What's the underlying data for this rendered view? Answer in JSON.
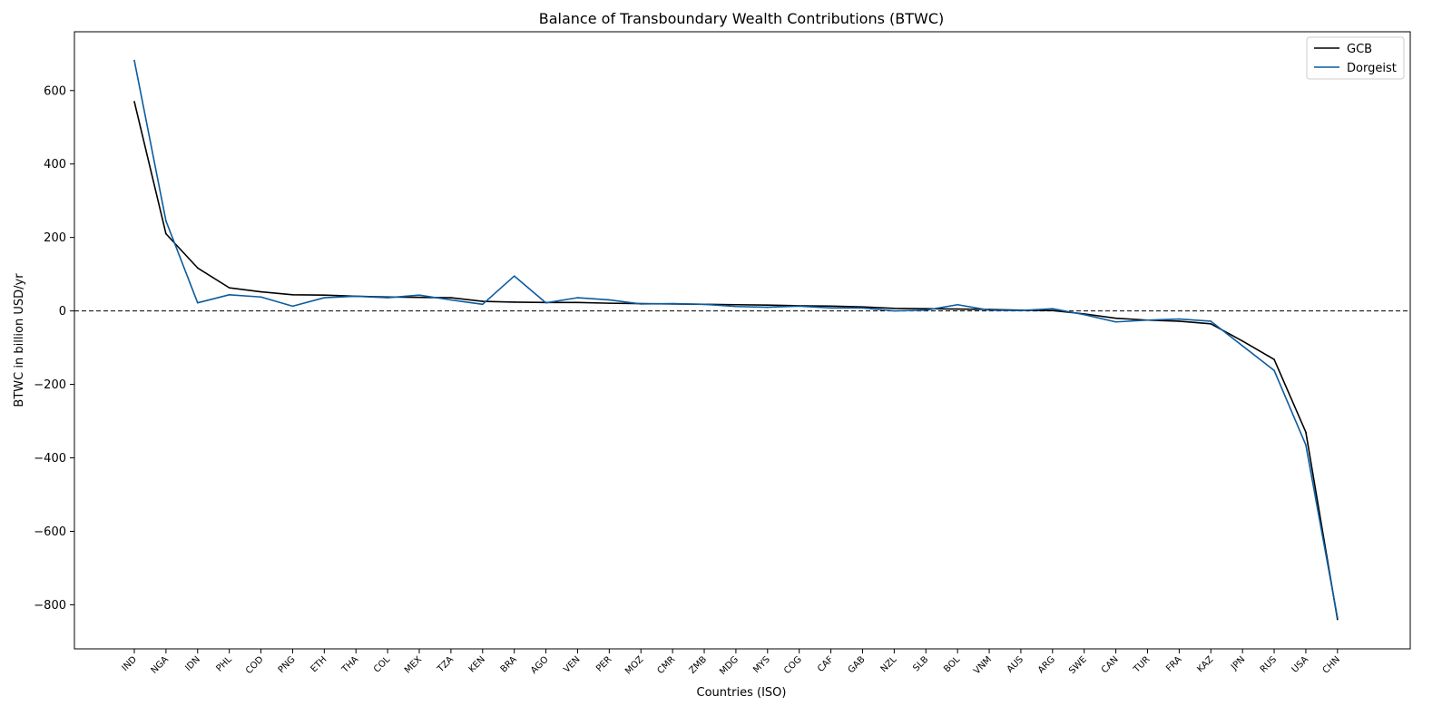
{
  "chart_data": {
    "type": "line",
    "title": "Balance of Transboundary Wealth Contributions (BTWC)",
    "xlabel": "Countries (ISO)",
    "ylabel": "BTWC in billion USD/yr",
    "ylim": [
      -920,
      760
    ],
    "yticks": [
      600,
      400,
      200,
      0,
      -200,
      -400,
      -600,
      -800
    ],
    "ytick_labels": [
      "600",
      "400",
      "200",
      "0",
      "−200",
      "−400",
      "−600",
      "−800"
    ],
    "categories": [
      "IND",
      "NGA",
      "IDN",
      "PHL",
      "COD",
      "PNG",
      "ETH",
      "THA",
      "COL",
      "MEX",
      "TZA",
      "KEN",
      "BRA",
      "AGO",
      "VEN",
      "PER",
      "MOZ",
      "CMR",
      "ZMB",
      "MDG",
      "MYS",
      "COG",
      "CAF",
      "GAB",
      "NZL",
      "SLB",
      "BOL",
      "VNM",
      "AUS",
      "ARG",
      "SWE",
      "CAN",
      "TUR",
      "FRA",
      "KAZ",
      "JPN",
      "RUS",
      "USA",
      "CHN"
    ],
    "series": [
      {
        "name": "GCB",
        "color": "#000000",
        "values": [
          570,
          210,
          117,
          63,
          52,
          44,
          43,
          40,
          38,
          37,
          36,
          26,
          24,
          23,
          23,
          21,
          20,
          19,
          18,
          17,
          16,
          14,
          13,
          11,
          7,
          6,
          5,
          4,
          2,
          1,
          -8,
          -20,
          -25,
          -28,
          -35,
          -82,
          -132,
          -330,
          -840
        ]
      },
      {
        "name": "Dorgeist",
        "color": "#0a5ca0",
        "values": [
          682,
          245,
          22,
          44,
          38,
          13,
          36,
          40,
          36,
          43,
          30,
          18,
          95,
          22,
          36,
          30,
          19,
          20,
          18,
          12,
          10,
          13,
          8,
          8,
          0,
          2,
          17,
          2,
          1,
          6,
          -10,
          -30,
          -25,
          -22,
          -28,
          -95,
          -162,
          -365,
          -835
        ]
      }
    ],
    "reference_line": {
      "y": 0,
      "style": "dashed"
    },
    "grid": false,
    "legend": "top-right"
  }
}
